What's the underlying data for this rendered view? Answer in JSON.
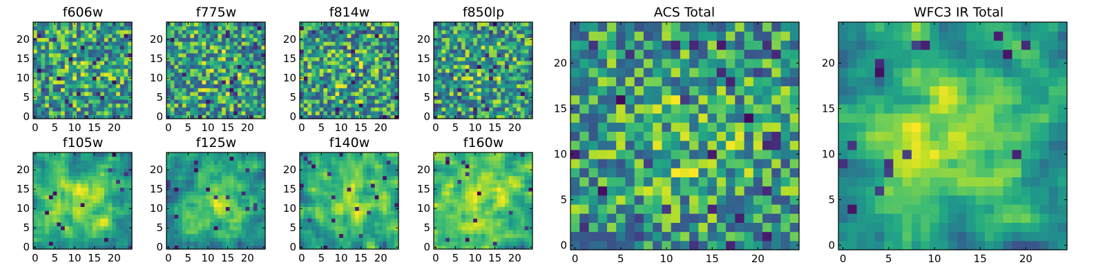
{
  "figure": {
    "panel_titles": [
      "f606w",
      "f775w",
      "f814w",
      "f850lp",
      "f105w",
      "f125w",
      "f140w",
      "f160w",
      "ACS Total",
      "WFC3 IR Total"
    ]
  },
  "chart_data": [
    {
      "type": "heatmap",
      "title": "f606w",
      "grid_size": 25,
      "colormap": "viridis",
      "x_ticks": [
        0,
        5,
        10,
        15,
        20
      ],
      "y_ticks": [
        0,
        5,
        10,
        15,
        20
      ],
      "xlim": [
        -0.5,
        24.5
      ],
      "ylim": [
        -0.5,
        24.5
      ],
      "texture": "noisy",
      "center_strength": 0.12,
      "seed": 11
    },
    {
      "type": "heatmap",
      "title": "f775w",
      "grid_size": 25,
      "colormap": "viridis",
      "x_ticks": [
        0,
        5,
        10,
        15,
        20
      ],
      "y_ticks": [
        0,
        5,
        10,
        15,
        20
      ],
      "xlim": [
        -0.5,
        24.5
      ],
      "ylim": [
        -0.5,
        24.5
      ],
      "texture": "noisy",
      "center_strength": 0.14,
      "seed": 23
    },
    {
      "type": "heatmap",
      "title": "f814w",
      "grid_size": 25,
      "colormap": "viridis",
      "x_ticks": [
        0,
        5,
        10,
        15,
        20
      ],
      "y_ticks": [
        0,
        5,
        10,
        15,
        20
      ],
      "xlim": [
        -0.5,
        24.5
      ],
      "ylim": [
        -0.5,
        24.5
      ],
      "texture": "noisy",
      "center_strength": 0.12,
      "seed": 37
    },
    {
      "type": "heatmap",
      "title": "f850lp",
      "grid_size": 25,
      "colormap": "viridis",
      "x_ticks": [
        0,
        5,
        10,
        15,
        20
      ],
      "y_ticks": [
        0,
        5,
        10,
        15,
        20
      ],
      "xlim": [
        -0.5,
        24.5
      ],
      "ylim": [
        -0.5,
        24.5
      ],
      "texture": "noisy",
      "center_strength": 0.14,
      "seed": 41
    },
    {
      "type": "heatmap",
      "title": "f105w",
      "grid_size": 25,
      "colormap": "viridis",
      "x_ticks": [
        0,
        5,
        10,
        15,
        20
      ],
      "y_ticks": [
        0,
        5,
        10,
        15,
        20
      ],
      "xlim": [
        -0.5,
        24.5
      ],
      "ylim": [
        -0.5,
        24.5
      ],
      "texture": "smooth",
      "center_strength": 0.3,
      "seed": 53
    },
    {
      "type": "heatmap",
      "title": "f125w",
      "grid_size": 25,
      "colormap": "viridis",
      "x_ticks": [
        0,
        5,
        10,
        15,
        20
      ],
      "y_ticks": [
        0,
        5,
        10,
        15,
        20
      ],
      "xlim": [
        -0.5,
        24.5
      ],
      "ylim": [
        -0.5,
        24.5
      ],
      "texture": "smooth",
      "center_strength": 0.34,
      "seed": 67
    },
    {
      "type": "heatmap",
      "title": "f140w",
      "grid_size": 25,
      "colormap": "viridis",
      "x_ticks": [
        0,
        5,
        10,
        15,
        20
      ],
      "y_ticks": [
        0,
        5,
        10,
        15,
        20
      ],
      "xlim": [
        -0.5,
        24.5
      ],
      "ylim": [
        -0.5,
        24.5
      ],
      "texture": "smooth",
      "center_strength": 0.28,
      "seed": 79
    },
    {
      "type": "heatmap",
      "title": "f160w",
      "grid_size": 25,
      "colormap": "viridis",
      "x_ticks": [
        0,
        5,
        10,
        15,
        20
      ],
      "y_ticks": [
        0,
        5,
        10,
        15,
        20
      ],
      "xlim": [
        -0.5,
        24.5
      ],
      "ylim": [
        -0.5,
        24.5
      ],
      "texture": "smooth",
      "center_strength": 0.3,
      "seed": 83
    },
    {
      "type": "heatmap",
      "title": "ACS Total",
      "grid_size": 25,
      "colormap": "viridis",
      "x_ticks": [
        0,
        5,
        10,
        15,
        20
      ],
      "y_ticks": [
        0,
        5,
        10,
        15,
        20
      ],
      "xlim": [
        -0.5,
        24.5
      ],
      "ylim": [
        -0.5,
        24.5
      ],
      "texture": "noisy",
      "center_strength": 0.18,
      "seed": 97
    },
    {
      "type": "heatmap",
      "title": "WFC3 IR Total",
      "grid_size": 25,
      "colormap": "viridis",
      "x_ticks": [
        0,
        5,
        10,
        15,
        20
      ],
      "y_ticks": [
        0,
        5,
        10,
        15,
        20
      ],
      "xlim": [
        -0.5,
        24.5
      ],
      "ylim": [
        -0.5,
        24.5
      ],
      "texture": "smooth",
      "center_strength": 0.42,
      "seed": 101
    }
  ]
}
